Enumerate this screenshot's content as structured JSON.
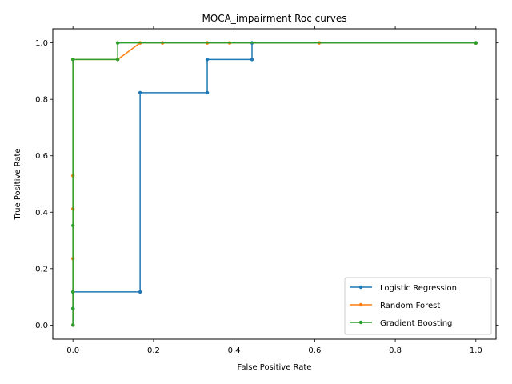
{
  "chart_data": {
    "type": "line",
    "title": "MOCA_impairment Roc curves",
    "xlabel": "False Positive Rate",
    "ylabel": "True Positive Rate",
    "xlim": [
      -0.05,
      1.05
    ],
    "ylim": [
      -0.05,
      1.05
    ],
    "xticks": [
      0.0,
      0.2,
      0.4,
      0.6,
      0.8,
      1.0
    ],
    "yticks": [
      0.0,
      0.2,
      0.4,
      0.6,
      0.8,
      1.0
    ],
    "xtick_labels": [
      "0.0",
      "0.2",
      "0.4",
      "0.6",
      "0.8",
      "1.0"
    ],
    "ytick_labels": [
      "0.0",
      "0.2",
      "0.4",
      "0.6",
      "0.8",
      "1.0"
    ],
    "grid": false,
    "legend_position": "lower-right",
    "series": [
      {
        "name": "Logistic Regression",
        "color": "#1f77b4",
        "x": [
          0.0,
          0.0,
          0.0,
          0.1667,
          0.1667,
          0.3333,
          0.3333,
          0.4444,
          0.4444,
          1.0
        ],
        "y": [
          0.0,
          0.0588,
          0.1176,
          0.1176,
          0.8235,
          0.8235,
          0.9412,
          0.9412,
          1.0,
          1.0
        ]
      },
      {
        "name": "Random Forest",
        "color": "#ff7f0e",
        "x": [
          0.0,
          0.0,
          0.0,
          0.0,
          0.0,
          0.0,
          0.1111,
          0.1667,
          0.2222,
          0.3333,
          0.3889,
          0.6111,
          1.0
        ],
        "y": [
          0.0,
          0.2353,
          0.4118,
          0.5294,
          0.9412,
          0.9412,
          0.9412,
          1.0,
          1.0,
          1.0,
          1.0,
          1.0,
          1.0
        ]
      },
      {
        "name": "Gradient Boosting",
        "color": "#2ca02c",
        "x": [
          0.0,
          0.0,
          0.0,
          0.0,
          0.0,
          0.1111,
          0.1111,
          1.0
        ],
        "y": [
          0.0,
          0.0588,
          0.1176,
          0.3529,
          0.9412,
          0.9412,
          1.0,
          1.0
        ]
      }
    ]
  }
}
